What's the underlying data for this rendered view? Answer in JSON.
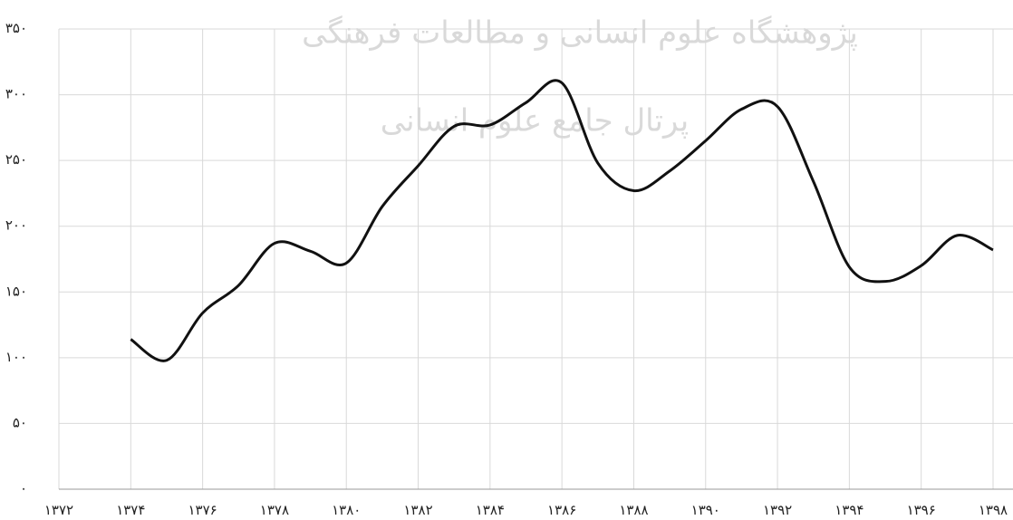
{
  "chart_data": {
    "type": "line",
    "annotations": [
      "پژوهشگاه علوم انسانی و مطالعات فرهنگی",
      "پرتال جامع علوم انسانی"
    ],
    "x": [
      1374,
      1375,
      1376,
      1377,
      1378,
      1379,
      1380,
      1381,
      1382,
      1383,
      1384,
      1385,
      1386,
      1387,
      1388,
      1389,
      1390,
      1391,
      1392,
      1393,
      1394,
      1395,
      1396,
      1397,
      1398
    ],
    "series": [
      {
        "color": "#111111",
        "values": [
          114,
          98,
          134,
          155,
          187,
          181,
          172,
          215,
          246,
          276,
          277,
          294,
          309,
          248,
          227,
          242,
          265,
          289,
          291,
          234,
          169,
          158,
          170,
          193,
          182
        ]
      }
    ],
    "xlim": [
      1372,
      1398
    ],
    "xticks": [
      {
        "value": 1372,
        "label": "۱۳۷۲"
      },
      {
        "value": 1374,
        "label": "۱۳۷۴"
      },
      {
        "value": 1376,
        "label": "۱۳۷۶"
      },
      {
        "value": 1378,
        "label": "۱۳۷۸"
      },
      {
        "value": 1380,
        "label": "۱۳۸۰"
      },
      {
        "value": 1382,
        "label": "۱۳۸۲"
      },
      {
        "value": 1384,
        "label": "۱۳۸۴"
      },
      {
        "value": 1386,
        "label": "۱۳۸۶"
      },
      {
        "value": 1388,
        "label": "۱۳۸۸"
      },
      {
        "value": 1390,
        "label": "۱۳۹۰"
      },
      {
        "value": 1392,
        "label": "۱۳۹۲"
      },
      {
        "value": 1394,
        "label": "۱۳۹۴"
      },
      {
        "value": 1396,
        "label": "۱۳۹۶"
      },
      {
        "value": 1398,
        "label": "۱۳۹۸"
      }
    ],
    "ylim": [
      0,
      350
    ],
    "yticks": [
      {
        "value": 0,
        "label": "۰"
      },
      {
        "value": 50,
        "label": "۵۰"
      },
      {
        "value": 100,
        "label": "۱۰۰"
      },
      {
        "value": 150,
        "label": "۱۵۰"
      },
      {
        "value": 200,
        "label": "۲۰۰"
      },
      {
        "value": 250,
        "label": "۲۵۰"
      },
      {
        "value": 300,
        "label": "۳۰۰"
      },
      {
        "value": 350,
        "label": "۳۵۰"
      }
    ],
    "grid": true
  }
}
